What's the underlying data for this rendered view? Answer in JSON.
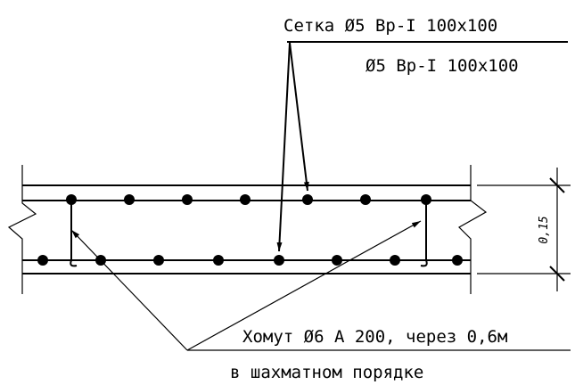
{
  "labels": {
    "mesh_top": "Сетка Ø5 Вр-I 100х100",
    "mesh_bottom": "Ø5 Вр-I 100х100",
    "stirrup": "Хомут Ø6 А 200, через 0,6м",
    "stirrup_note": "в шахматном порядке",
    "dimension": "0,15"
  }
}
